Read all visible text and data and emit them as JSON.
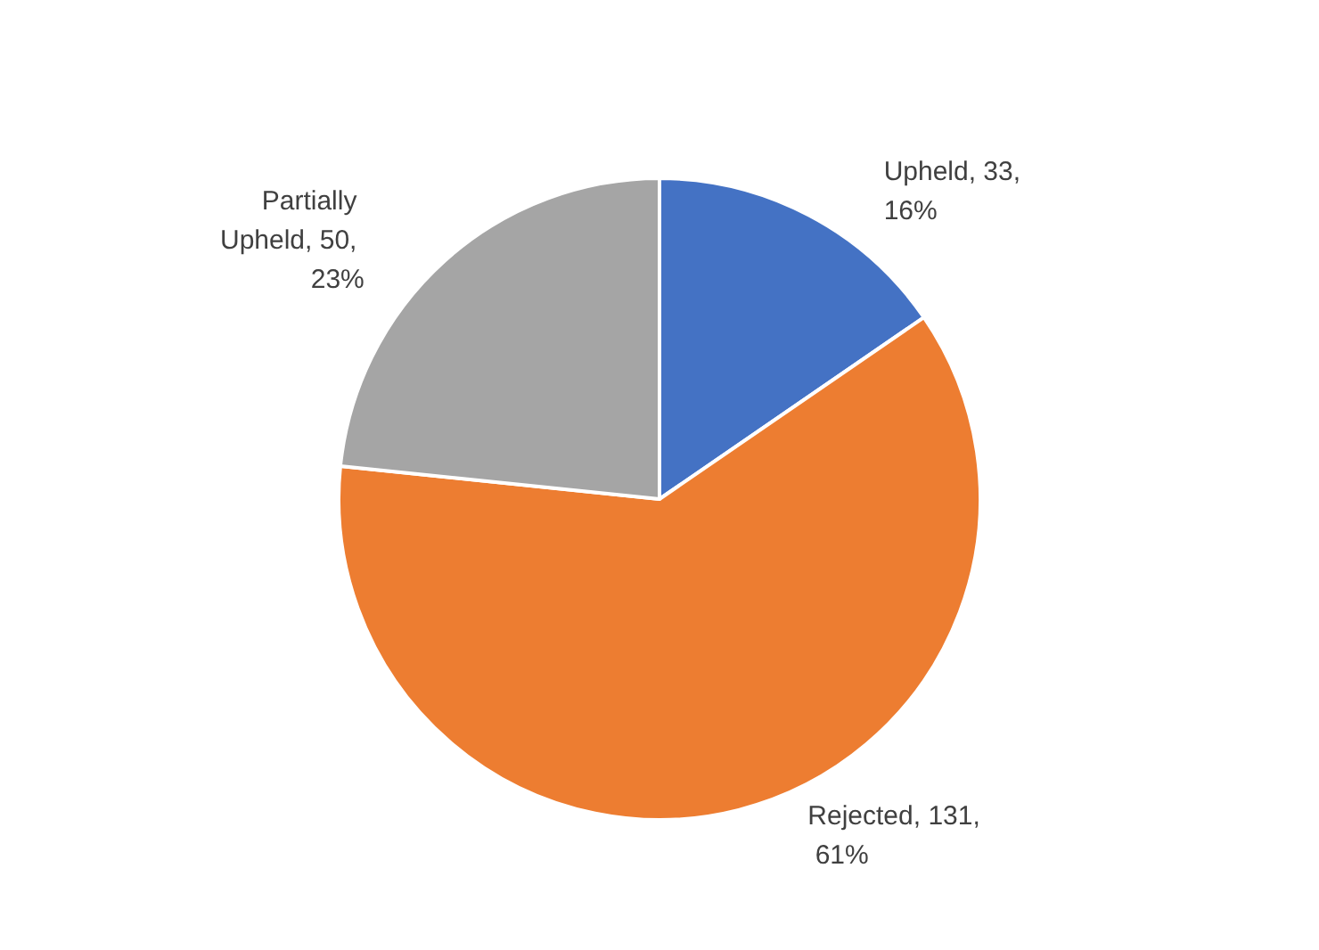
{
  "chart_data": {
    "type": "pie",
    "categories": [
      "Upheld",
      "Rejected",
      "Partially Upheld"
    ],
    "values": [
      33,
      131,
      50
    ],
    "value_labels": [
      "33, 16%",
      "131, 61%",
      "50, 23%"
    ],
    "colors": [
      "#4472c4",
      "#ed7d31",
      "#a5a5a5"
    ],
    "legend": false
  }
}
